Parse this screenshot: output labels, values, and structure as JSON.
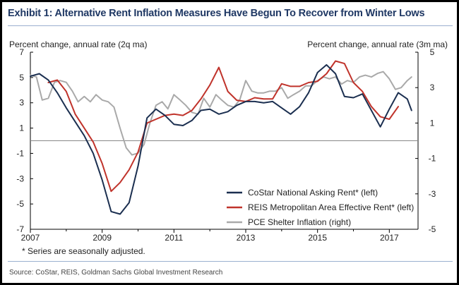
{
  "title": "Exhibit 1: Alternative Rent Inflation Measures Have Begun To Recover from Winter Lows",
  "footnote": "* Series are seasonally adjusted.",
  "source": "Source: CoStar, REIS, Goldman Sachs Global Investment Research",
  "colors": {
    "costar": "#1b2f50",
    "reis": "#c0332b",
    "pce": "#a9a9a9",
    "zero_line": "#888888"
  },
  "chart_data": {
    "type": "line",
    "ylabel_left": "Percent change, annual rate (2q ma)",
    "ylabel_right": "Percent change, annual rate (3m ma)",
    "xlim": [
      2007.0,
      2017.8
    ],
    "x_ticks": [
      2007,
      2009,
      2011,
      2013,
      2015,
      2017
    ],
    "x_tick_labels": [
      "2007",
      "2009",
      "2011",
      "2013",
      "2015",
      "2017"
    ],
    "ylim_left": [
      -7,
      7
    ],
    "y_ticks_left": [
      7,
      5,
      3,
      1,
      -1,
      -3,
      -5,
      -7
    ],
    "y_tick_labels_left": [
      "7",
      "5",
      "3",
      "1",
      "-1",
      "-3",
      "-5",
      "-7"
    ],
    "ylim_right": [
      -5,
      5
    ],
    "y_ticks_right": [
      5,
      3,
      1,
      -1,
      -3,
      -5
    ],
    "y_tick_labels_right": [
      "5",
      "3",
      "1",
      "-1",
      "-3",
      "-5"
    ],
    "legend_position": "bottom-right",
    "series": [
      {
        "name": "CoStar National Asking Rent* (left)",
        "axis": "left",
        "x": [
          2007.0,
          2007.25,
          2007.5,
          2007.75,
          2008.0,
          2008.25,
          2008.5,
          2008.75,
          2009.0,
          2009.25,
          2009.5,
          2009.75,
          2010.0,
          2010.25,
          2010.5,
          2010.75,
          2011.0,
          2011.25,
          2011.5,
          2011.75,
          2012.0,
          2012.25,
          2012.5,
          2012.75,
          2013.0,
          2013.25,
          2013.5,
          2013.75,
          2014.0,
          2014.25,
          2014.5,
          2014.75,
          2015.0,
          2015.25,
          2015.5,
          2015.75,
          2016.0,
          2016.25,
          2016.5,
          2016.75,
          2017.0,
          2017.25,
          2017.5,
          2017.62
        ],
        "values": [
          5.1,
          5.3,
          4.8,
          3.8,
          2.6,
          1.5,
          0.4,
          -1.0,
          -3.1,
          -5.6,
          -5.8,
          -4.9,
          -2.0,
          1.8,
          2.5,
          2.0,
          1.3,
          1.2,
          1.6,
          2.4,
          2.5,
          2.1,
          2.3,
          2.8,
          3.1,
          3.1,
          3.0,
          3.1,
          2.6,
          2.1,
          2.7,
          3.8,
          5.4,
          6.0,
          5.3,
          3.5,
          3.4,
          3.7,
          2.4,
          1.1,
          2.5,
          3.8,
          3.3,
          2.4
        ]
      },
      {
        "name": "REIS Metropolitan Area Effective Rent* (left)",
        "axis": "left",
        "x": [
          2007.5,
          2007.75,
          2008.0,
          2008.25,
          2008.5,
          2008.75,
          2009.0,
          2009.25,
          2009.5,
          2009.75,
          2010.0,
          2010.25,
          2010.5,
          2010.75,
          2011.0,
          2011.25,
          2011.5,
          2011.75,
          2012.0,
          2012.25,
          2012.5,
          2012.75,
          2013.0,
          2013.25,
          2013.5,
          2013.75,
          2014.0,
          2014.25,
          2014.5,
          2014.75,
          2015.0,
          2015.25,
          2015.5,
          2015.75,
          2016.0,
          2016.25,
          2016.5,
          2016.75,
          2017.0,
          2017.25
        ],
        "values": [
          4.6,
          4.8,
          3.9,
          2.1,
          1.0,
          -0.1,
          -1.8,
          -4.0,
          -3.3,
          -2.3,
          -0.9,
          1.4,
          1.7,
          2.0,
          2.1,
          2.0,
          2.4,
          3.3,
          4.4,
          5.8,
          3.9,
          3.2,
          3.1,
          3.4,
          3.3,
          3.3,
          4.5,
          4.3,
          4.3,
          4.6,
          4.7,
          5.3,
          6.3,
          6.1,
          4.6,
          3.9,
          2.7,
          1.9,
          1.7,
          2.7
        ]
      },
      {
        "name": "PCE Shelter Inflation (right)",
        "axis": "right",
        "x": [
          2007.0,
          2007.17,
          2007.33,
          2007.5,
          2007.67,
          2007.83,
          2008.0,
          2008.17,
          2008.33,
          2008.5,
          2008.67,
          2008.83,
          2009.0,
          2009.17,
          2009.33,
          2009.5,
          2009.67,
          2009.83,
          2010.0,
          2010.17,
          2010.33,
          2010.5,
          2010.67,
          2010.83,
          2011.0,
          2011.17,
          2011.33,
          2011.5,
          2011.67,
          2011.83,
          2012.0,
          2012.17,
          2012.33,
          2012.5,
          2012.67,
          2012.83,
          2013.0,
          2013.17,
          2013.33,
          2013.5,
          2013.67,
          2013.83,
          2014.0,
          2014.17,
          2014.33,
          2014.5,
          2014.67,
          2014.83,
          2015.0,
          2015.17,
          2015.33,
          2015.5,
          2015.67,
          2015.83,
          2016.0,
          2016.17,
          2016.33,
          2016.5,
          2016.67,
          2016.83,
          2017.0,
          2017.17,
          2017.33,
          2017.5,
          2017.62
        ],
        "values": [
          3.7,
          3.6,
          2.3,
          2.4,
          3.3,
          3.4,
          3.3,
          2.8,
          2.2,
          2.5,
          2.2,
          2.6,
          2.3,
          2.2,
          1.9,
          0.7,
          -0.4,
          -0.8,
          -0.7,
          -0.2,
          1.0,
          2.0,
          2.2,
          1.8,
          2.6,
          2.3,
          2.0,
          1.6,
          1.5,
          2.4,
          1.9,
          2.6,
          2.3,
          2.0,
          1.9,
          2.3,
          3.4,
          2.8,
          2.7,
          2.7,
          2.8,
          2.8,
          3.0,
          2.4,
          2.6,
          2.8,
          3.1,
          3.1,
          3.4,
          3.6,
          3.5,
          3.6,
          3.2,
          3.4,
          3.3,
          3.6,
          3.7,
          3.6,
          3.8,
          3.9,
          3.5,
          2.9,
          3.0,
          3.4,
          3.6
        ]
      }
    ]
  }
}
